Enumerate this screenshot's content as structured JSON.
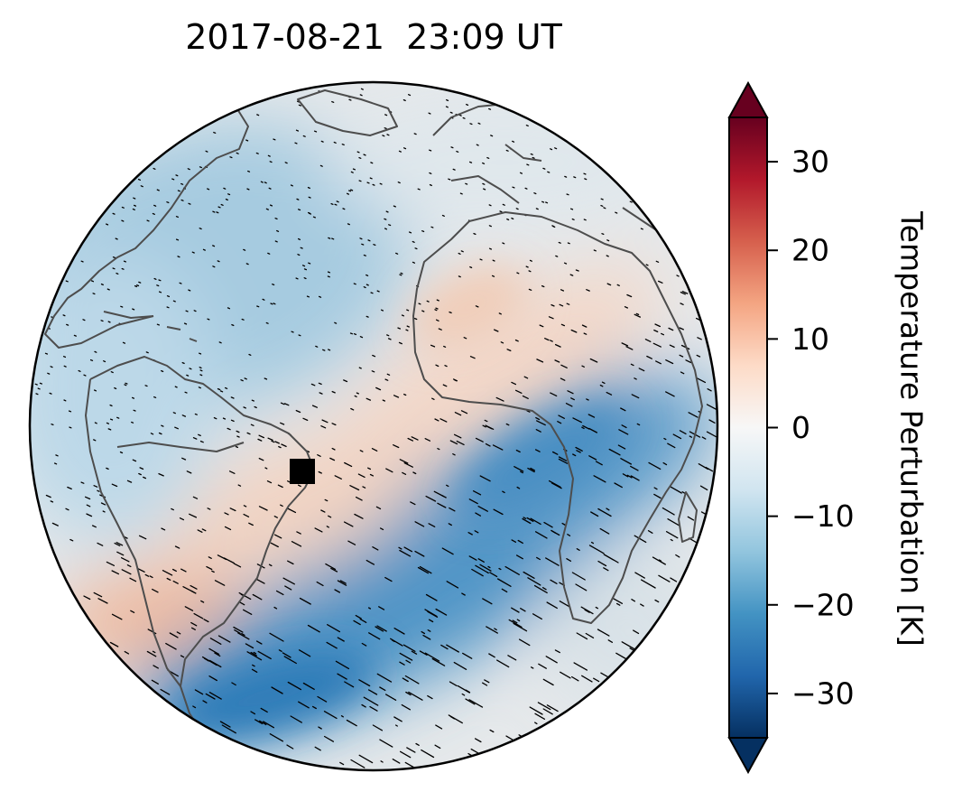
{
  "title": "2017-08-21  23:09 UT",
  "colorbar": {
    "label": "Temperature Perturbation [K]",
    "ticks": [
      30,
      20,
      10,
      0,
      -10,
      -20,
      -30
    ],
    "tick_labels": [
      "30",
      "20",
      "10",
      "0",
      "−10",
      "−20",
      "−30"
    ],
    "range": [
      -35,
      35
    ],
    "extend": "both",
    "colormap": "RdBu_r",
    "colors": [
      "#053061",
      "#2166ac",
      "#4393c3",
      "#92c5de",
      "#d1e5f0",
      "#f7f7f7",
      "#fddbc7",
      "#f4a582",
      "#d6604d",
      "#b2182b",
      "#67001f"
    ]
  },
  "map": {
    "projection": "orthographic",
    "coastline_color": "#4d4d4d",
    "marker": "black-square"
  }
}
